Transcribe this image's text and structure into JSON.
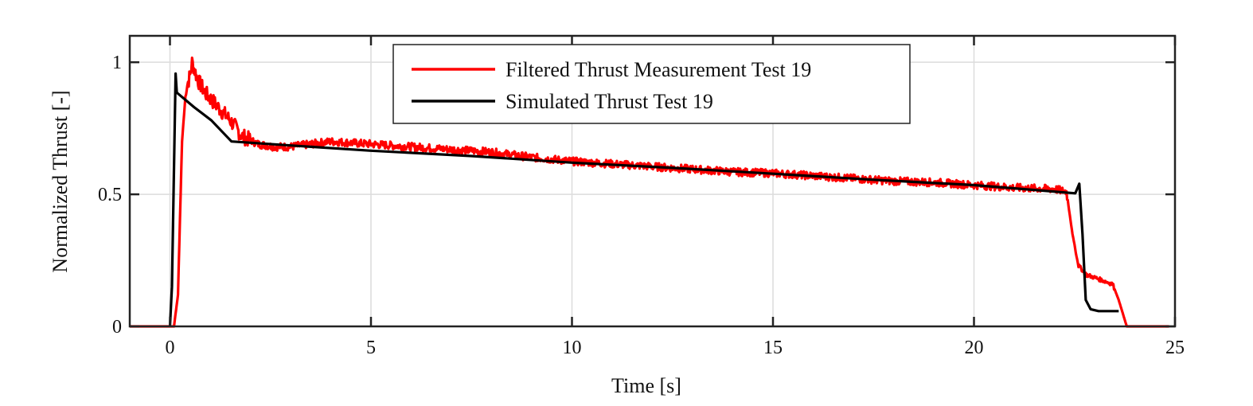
{
  "chart_data": {
    "type": "line",
    "title": "",
    "xlabel": "Time [s]",
    "ylabel": "Normalized Thrust [-]",
    "xlim": [
      -1,
      25
    ],
    "ylim": [
      0,
      1.1
    ],
    "xticks": [
      0,
      5,
      10,
      15,
      20,
      25
    ],
    "xtick_labels": [
      "0",
      "5",
      "10",
      "15",
      "20",
      "25"
    ],
    "yticks": [
      0,
      0.5,
      1
    ],
    "ytick_labels": [
      "0",
      "0.5",
      "1"
    ],
    "grid": true,
    "legend_position": "top-center",
    "series": [
      {
        "name": "Filtered Thrust Measurement Test 19",
        "color": "#ff0000",
        "x": [
          -1,
          0.1,
          0.2,
          0.3,
          0.4,
          0.5,
          0.55,
          0.7,
          0.9,
          1.2,
          1.5,
          1.8,
          2.2,
          2.6,
          3.0,
          3.5,
          4.0,
          5.0,
          6.0,
          7.0,
          8.0,
          9.0,
          10.0,
          11.0,
          12.0,
          13.0,
          14.0,
          15.0,
          16.0,
          17.0,
          18.0,
          19.0,
          20.0,
          21.0,
          22.0,
          22.3,
          22.45,
          22.6,
          22.8,
          23.0,
          23.45,
          23.6,
          23.8,
          24.85
        ],
        "y": [
          0,
          0,
          0.12,
          0.7,
          0.9,
          0.95,
          1.0,
          0.93,
          0.88,
          0.83,
          0.78,
          0.72,
          0.69,
          0.68,
          0.68,
          0.69,
          0.7,
          0.69,
          0.68,
          0.67,
          0.66,
          0.64,
          0.625,
          0.615,
          0.605,
          0.595,
          0.585,
          0.58,
          0.57,
          0.56,
          0.55,
          0.545,
          0.535,
          0.525,
          0.52,
          0.51,
          0.35,
          0.23,
          0.195,
          0.185,
          0.16,
          0.1,
          0.0,
          0.0
        ]
      },
      {
        "name": "Simulated Thrust Test 19",
        "color": "#000000",
        "x": [
          0.0,
          0.05,
          0.14,
          0.17,
          0.6,
          1.03,
          1.53,
          3.0,
          5.0,
          7.5,
          10.0,
          12.5,
          15.0,
          17.5,
          20.0,
          22.52,
          22.62,
          22.7,
          22.78,
          22.9,
          23.1,
          23.6
        ],
        "y": [
          0,
          0.15,
          0.957,
          0.885,
          0.83,
          0.78,
          0.7,
          0.685,
          0.665,
          0.645,
          0.62,
          0.6,
          0.578,
          0.555,
          0.535,
          0.504,
          0.54,
          0.35,
          0.1,
          0.065,
          0.058,
          0.058
        ]
      }
    ]
  }
}
